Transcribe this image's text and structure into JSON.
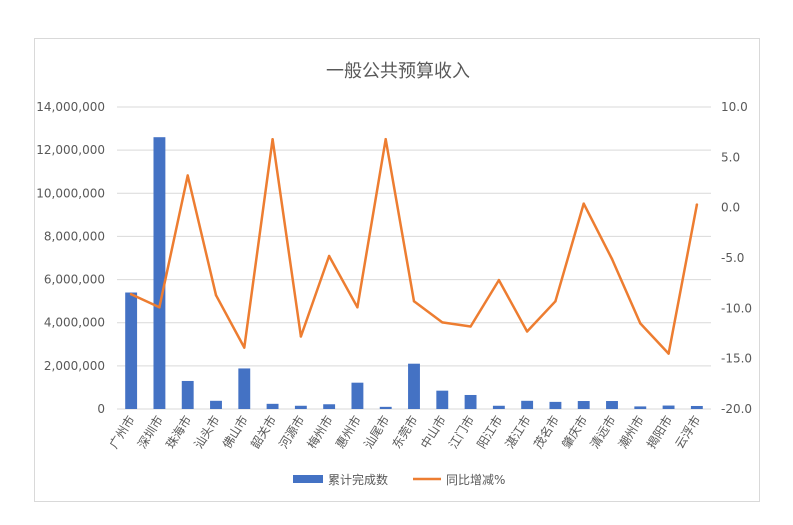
{
  "chart_data": {
    "type": "bar+line",
    "title": "一般公共预算收入",
    "categories": [
      "广州市",
      "深圳市",
      "珠海市",
      "汕头市",
      "佛山市",
      "韶关市",
      "河源市",
      "梅州市",
      "惠州市",
      "汕尾市",
      "东莞市",
      "中山市",
      "江门市",
      "阳江市",
      "湛江市",
      "茂名市",
      "肇庆市",
      "清远市",
      "潮州市",
      "揭阳市",
      "云浮市"
    ],
    "left_axis": {
      "min": 0,
      "max": 14000000,
      "step": 2000000,
      "ticks": [
        "0",
        "2,000,000",
        "4,000,000",
        "6,000,000",
        "8,000,000",
        "10,000,000",
        "12,000,000",
        "14,000,000"
      ]
    },
    "right_axis": {
      "min": -20,
      "max": 10,
      "step": 5,
      "ticks": [
        "-20.0",
        "-15.0",
        "-10.0",
        "-5.0",
        "0.0",
        "5.0",
        "10.0"
      ]
    },
    "series": [
      {
        "name": "累计完成数",
        "type": "bar",
        "axis": "left",
        "color": "#4472c4",
        "values": [
          5400000,
          12600000,
          1300000,
          380000,
          1880000,
          240000,
          150000,
          220000,
          1220000,
          100000,
          2100000,
          850000,
          650000,
          150000,
          380000,
          330000,
          370000,
          370000,
          120000,
          160000,
          140000
        ]
      },
      {
        "name": "同比增减%",
        "type": "line",
        "axis": "right",
        "color": "#ed7d31",
        "values": [
          -8.6,
          -9.9,
          3.2,
          -8.7,
          -13.9,
          6.8,
          -12.8,
          -4.8,
          -9.9,
          6.8,
          -9.3,
          -11.4,
          -11.8,
          -7.2,
          -12.3,
          -9.3,
          0.4,
          -5.1,
          -11.5,
          -14.5,
          0.3
        ]
      }
    ],
    "gridlines": true,
    "legend": "bottom"
  }
}
